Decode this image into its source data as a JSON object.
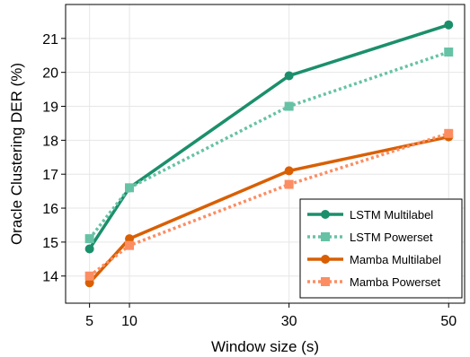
{
  "chart_data": {
    "type": "line",
    "xlabel": "Window size (s)",
    "ylabel": "Oracle Clustering DER (%)",
    "x": [
      5,
      10,
      30,
      50
    ],
    "xlim": [
      2,
      52
    ],
    "ylim": [
      13.2,
      22.0
    ],
    "xticks": [
      5,
      10,
      30,
      50
    ],
    "yticks": [
      14,
      15,
      16,
      17,
      18,
      19,
      20,
      21
    ],
    "grid": true,
    "legend_position": "bottom-right",
    "series": [
      {
        "name": "LSTM Multilabel",
        "values": [
          14.8,
          16.6,
          19.9,
          21.4
        ],
        "color": "#1b8f6b",
        "style": "solid",
        "marker": "circle"
      },
      {
        "name": "LSTM Powerset",
        "values": [
          15.1,
          16.6,
          19.0,
          20.6
        ],
        "color": "#66c2a5",
        "style": "dotted",
        "marker": "square"
      },
      {
        "name": "Mamba Multilabel",
        "values": [
          13.8,
          15.1,
          17.1,
          18.1
        ],
        "color": "#d95f02",
        "style": "solid",
        "marker": "circle"
      },
      {
        "name": "Mamba Powerset",
        "values": [
          14.0,
          14.9,
          16.7,
          18.2
        ],
        "color": "#fc8d62",
        "style": "dotted",
        "marker": "square"
      }
    ]
  }
}
